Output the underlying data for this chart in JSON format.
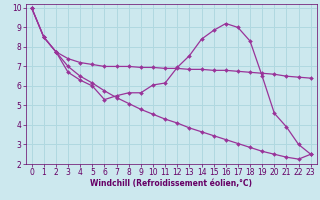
{
  "background_color": "#cce8ee",
  "grid_color": "#b0d8e0",
  "line_color": "#993399",
  "marker": "D",
  "marker_size": 2.0,
  "line_width": 0.9,
  "xlabel": "Windchill (Refroidissement éolien,°C)",
  "xlabel_color": "#660066",
  "tick_color": "#660066",
  "spine_color": "#660066",
  "xlim": [
    -0.5,
    23.5
  ],
  "ylim": [
    2,
    10.2
  ],
  "xticks": [
    0,
    1,
    2,
    3,
    4,
    5,
    6,
    7,
    8,
    9,
    10,
    11,
    12,
    13,
    14,
    15,
    16,
    17,
    18,
    19,
    20,
    21,
    22,
    23
  ],
  "yticks": [
    2,
    3,
    4,
    5,
    6,
    7,
    8,
    9,
    10
  ],
  "line1_x": [
    0,
    1,
    2,
    3,
    4,
    5,
    6,
    7,
    8,
    9,
    10,
    11,
    12,
    13,
    14,
    15,
    16,
    17,
    18,
    19,
    20,
    21,
    22,
    23
  ],
  "line1_y": [
    10.0,
    8.5,
    7.75,
    6.7,
    6.3,
    6.0,
    5.3,
    5.5,
    5.65,
    5.65,
    6.05,
    6.15,
    6.95,
    7.55,
    8.4,
    8.85,
    9.2,
    9.0,
    8.3,
    6.5,
    4.6,
    3.9,
    3.0,
    2.5
  ],
  "line2_x": [
    0,
    1,
    2,
    3,
    4,
    5,
    6,
    7,
    8,
    9,
    10,
    11,
    12,
    13,
    14,
    15,
    16,
    17,
    18,
    19,
    20,
    21,
    22,
    23
  ],
  "line2_y": [
    10.0,
    8.5,
    7.75,
    7.4,
    7.2,
    7.1,
    7.0,
    7.0,
    7.0,
    6.95,
    6.95,
    6.9,
    6.9,
    6.85,
    6.85,
    6.8,
    6.8,
    6.75,
    6.7,
    6.65,
    6.6,
    6.5,
    6.45,
    6.4
  ],
  "line3_x": [
    0,
    1,
    2,
    3,
    4,
    5,
    6,
    7,
    8,
    9,
    10,
    11,
    12,
    13,
    14,
    15,
    16,
    17,
    18,
    19,
    20,
    21,
    22,
    23
  ],
  "line3_y": [
    10.0,
    8.5,
    7.75,
    7.0,
    6.5,
    6.15,
    5.75,
    5.4,
    5.1,
    4.8,
    4.55,
    4.3,
    4.1,
    3.85,
    3.65,
    3.45,
    3.25,
    3.05,
    2.85,
    2.65,
    2.5,
    2.35,
    2.25,
    2.5
  ],
  "tick_fontsize": 5.5,
  "xlabel_fontsize": 5.5,
  "xlabel_fontweight": "bold"
}
